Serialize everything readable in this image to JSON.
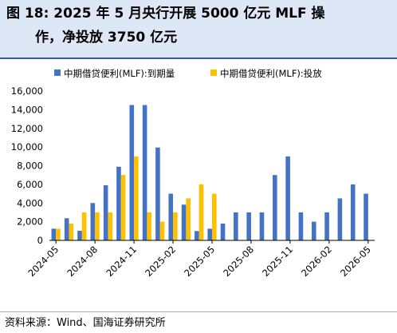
{
  "title": {
    "line1": "图 18:  2025 年 5 月央行开展 5000 亿元 MLF 操",
    "line2": "作，净投放 3750 亿元"
  },
  "source": "资料来源：Wind、国海证券研究所",
  "colors": {
    "maturity": "#4472c4",
    "injection": "#ffc000",
    "axis": "#000000",
    "background_header": "#dde7f5"
  },
  "chart_data": {
    "type": "bar",
    "legend_position": "top",
    "grid": false,
    "ylim": [
      0,
      16000
    ],
    "yticks": [
      "0",
      "2,000",
      "4,000",
      "6,000",
      "8,000",
      "10,000",
      "12,000",
      "14,000",
      "16,000"
    ],
    "categories": [
      "2024-05",
      "2024-06",
      "2024-07",
      "2024-08",
      "2024-09",
      "2024-10",
      "2024-11",
      "2024-12",
      "2025-01",
      "2025-02",
      "2025-03",
      "2025-04",
      "2025-05",
      "2025-06",
      "2025-07",
      "2025-08",
      "2025-09",
      "2025-10",
      "2025-11",
      "2025-12",
      "2026-01",
      "2026-02",
      "2026-03",
      "2026-04",
      "2026-05"
    ],
    "xtick_labels": [
      "2024-05",
      "2024-08",
      "2024-11",
      "2025-02",
      "2025-05",
      "2025-08",
      "2025-11",
      "2026-02",
      "2026-05"
    ],
    "series": [
      {
        "name": "中期借贷便利(MLF):到期量",
        "values": [
          1250,
          2370,
          1030,
          4000,
          5900,
          7890,
          14500,
          14500,
          9950,
          5000,
          3830,
          1000,
          1250,
          1800,
          3000,
          3000,
          3000,
          7000,
          9000,
          3000,
          2000,
          3000,
          4500,
          6000,
          5000
        ]
      },
      {
        "name": "中期借贷便利(MLF):投放",
        "values": [
          1250,
          1800,
          3000,
          3000,
          3000,
          7000,
          9000,
          3000,
          2000,
          3000,
          4500,
          6000,
          5000,
          null,
          null,
          null,
          null,
          null,
          null,
          null,
          null,
          null,
          null,
          null,
          null
        ]
      }
    ]
  }
}
